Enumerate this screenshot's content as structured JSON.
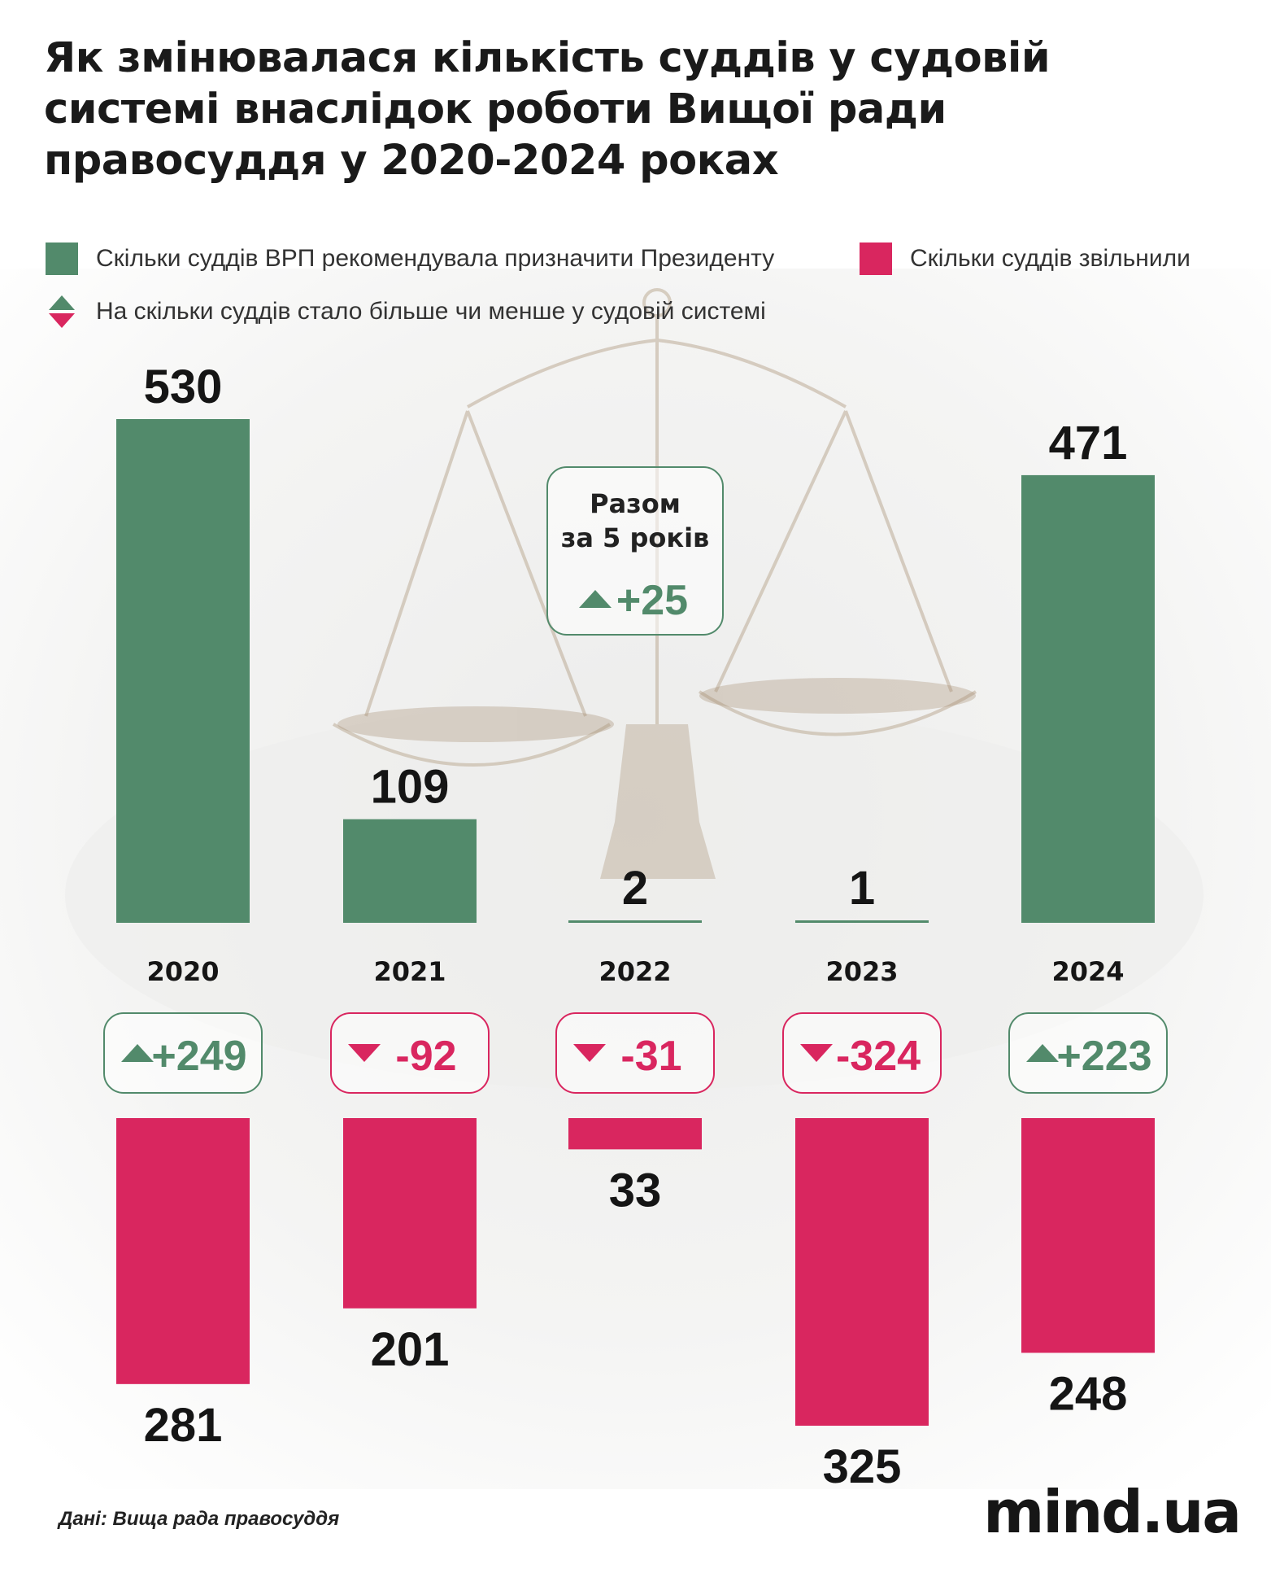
{
  "title": "Як змінювалася кількість суддів у судовій системі внаслідок роботи Вищої ради правосуддя у 2020-2024 роках",
  "legend": {
    "appointed": "Скільки суддів ВРП рекомендувала призначити Президенту",
    "dismissed": "Скільки суддів звільнили",
    "change": "На скільки суддів стало більше чи менше у судовій системі"
  },
  "total": {
    "line1": "Разом",
    "line2": "за 5 років",
    "value": "+25"
  },
  "source": "Дані: Вища рада правосуддя",
  "logo": "mind.ua",
  "colors": {
    "appointed": "#528a6b",
    "dismissed": "#d9265f",
    "up": "#528a6b",
    "down": "#d9265f"
  },
  "icons": {
    "up": "triangle-up-icon",
    "down": "triangle-down-icon"
  },
  "chart_data": {
    "type": "bar",
    "categories": [
      "2020",
      "2021",
      "2022",
      "2023",
      "2024"
    ],
    "series": [
      {
        "name": "Скільки суддів ВРП рекомендувала призначити Президенту",
        "values": [
          530,
          109,
          2,
          1,
          471
        ],
        "labels": [
          "530",
          "109",
          "2",
          "1",
          "471"
        ],
        "direction": "up"
      },
      {
        "name": "Скільки суддів звільнили",
        "values": [
          281,
          201,
          33,
          325,
          248
        ],
        "labels": [
          "281",
          "201",
          "33",
          "325",
          "248"
        ],
        "direction": "down"
      }
    ],
    "net_change": {
      "values": [
        249,
        -92,
        -31,
        -324,
        223
      ],
      "labels": [
        "+249",
        "-92",
        "-31",
        "-324",
        "+223"
      ]
    },
    "total_change": 25
  }
}
